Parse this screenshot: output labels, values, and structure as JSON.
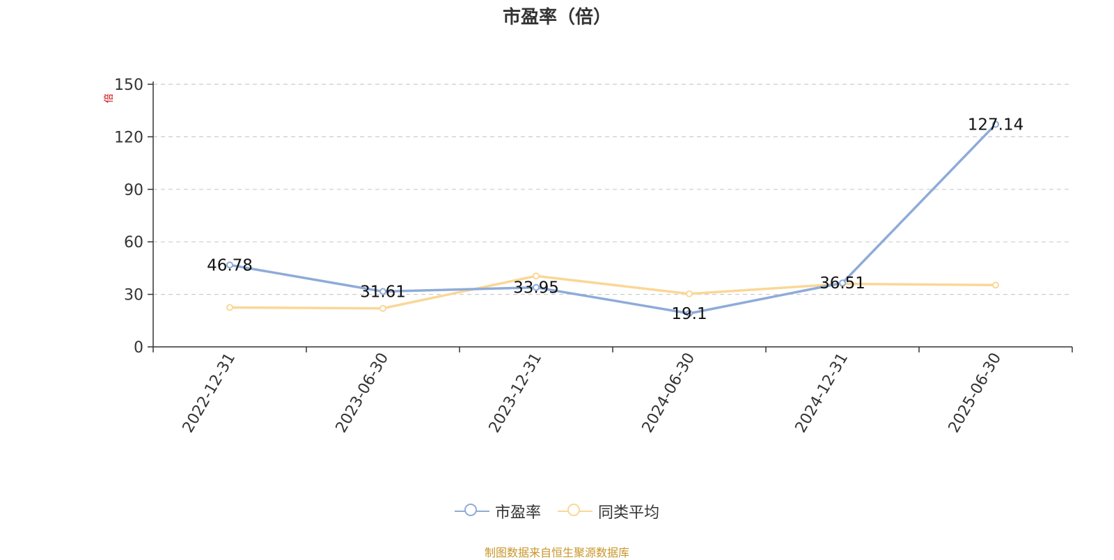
{
  "chart_data": {
    "type": "line",
    "title": "市盈率（倍）",
    "ylabel": "倍",
    "xlabel": "",
    "categories": [
      "2022-12-31",
      "2023-06-30",
      "2023-12-31",
      "2024-06-30",
      "2024-12-31",
      "2025-06-30"
    ],
    "ylim": [
      0,
      150
    ],
    "yticks": [
      0,
      30,
      60,
      90,
      120,
      150
    ],
    "grid": true,
    "legend_position": "bottom",
    "series": [
      {
        "name": "市盈率",
        "color": "#8eabd8",
        "values": [
          46.78,
          31.61,
          33.95,
          19.1,
          36.51,
          127.14
        ],
        "labels": [
          "46.78",
          "31.61",
          "33.95",
          "19.1",
          "36.51",
          "127.14"
        ]
      },
      {
        "name": "同类平均",
        "color": "#fad797",
        "values": [
          22.5,
          22.0,
          40.5,
          30.3,
          36.0,
          35.3
        ]
      }
    ]
  },
  "footer": {
    "source": "制图数据来自恒生聚源数据库"
  }
}
